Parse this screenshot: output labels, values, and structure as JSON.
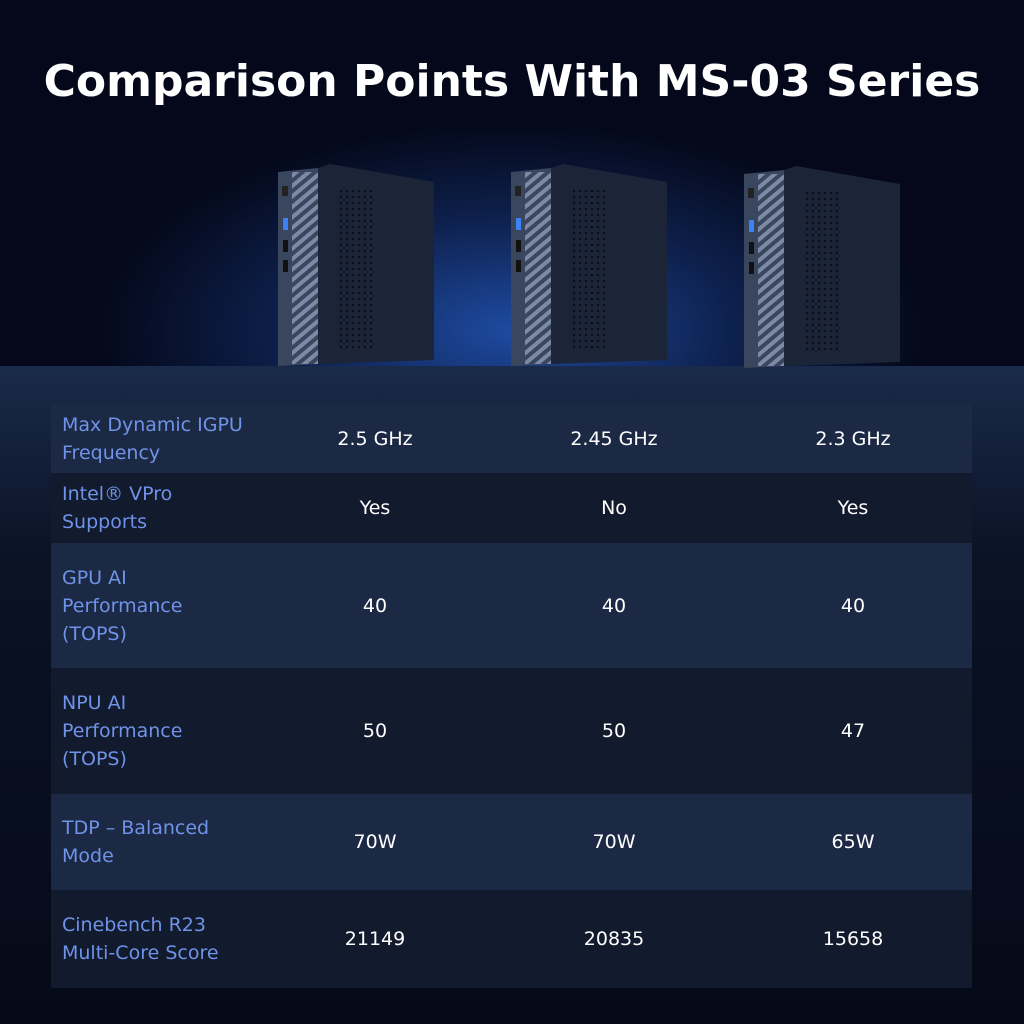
{
  "header": {
    "title": "Comparison Points With MS-03 Series"
  },
  "table": {
    "rows": [
      {
        "label_lines": [
          "Max Dynamic IGPU",
          "Frequency"
        ],
        "cells": [
          "2.5 GHz",
          "2.45 GHz",
          "2.3 GHz"
        ]
      },
      {
        "label_lines": [
          "Intel® VPro",
          "Supports"
        ],
        "cells": [
          "Yes",
          "No",
          "Yes"
        ]
      },
      {
        "label_lines": [
          "GPU AI",
          "Performance",
          "(TOPS)"
        ],
        "cells": [
          "40",
          "40",
          "40"
        ]
      },
      {
        "label_lines": [
          "NPU AI",
          "Performance",
          "(TOPS)"
        ],
        "cells": [
          "50",
          "50",
          "47"
        ]
      },
      {
        "label_lines": [
          "TDP – Balanced",
          "Mode"
        ],
        "cells": [
          "70W",
          "70W",
          "65W"
        ]
      },
      {
        "label_lines": [
          "Cinebench R23",
          "Multi-Core Score"
        ],
        "cells": [
          "21149",
          "20835",
          "15658"
        ]
      }
    ]
  }
}
